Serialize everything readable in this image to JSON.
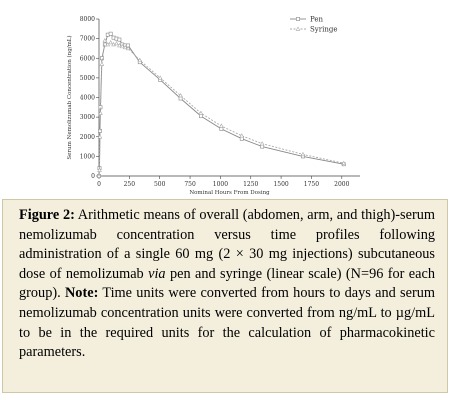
{
  "chart_data": {
    "type": "line",
    "xlabel": "Nominal Hours From Dosing",
    "ylabel": "Serum Nemolizumab Concentration (ng/mL)",
    "xlim": [
      0,
      2150
    ],
    "ylim": [
      0,
      8000
    ],
    "xticks": [
      0,
      250,
      500,
      750,
      1000,
      1250,
      1500,
      1750,
      2000
    ],
    "yticks": [
      0,
      1000,
      2000,
      3000,
      4000,
      5000,
      6000,
      7000,
      8000
    ],
    "xtick_labels": [
      "0",
      "250",
      "500",
      "750",
      "1000",
      "1250",
      "1500",
      "1750",
      "2000"
    ],
    "ytick_labels": [
      "0",
      "1000",
      "2000",
      "3000",
      "4000",
      "5000",
      "6000",
      "7000",
      "8000"
    ],
    "legend_position": "top-right",
    "series": [
      {
        "name": "Pen",
        "color": "#888888",
        "marker": "square",
        "x": [
          0,
          4,
          8,
          12,
          24,
          48,
          72,
          96,
          120,
          144,
          168,
          192,
          216,
          240,
          336,
          504,
          672,
          840,
          1008,
          1176,
          1344,
          1680,
          2016
        ],
        "y": [
          0,
          400,
          2300,
          3500,
          6000,
          6700,
          7200,
          7250,
          7050,
          7000,
          6950,
          6700,
          6650,
          6650,
          5800,
          4900,
          3950,
          3050,
          2400,
          1900,
          1500,
          1000,
          600
        ]
      },
      {
        "name": "Syringe",
        "color": "#aaaaaa",
        "marker": "triangle",
        "x": [
          0,
          4,
          8,
          12,
          24,
          48,
          72,
          96,
          120,
          144,
          168,
          192,
          216,
          240,
          336,
          504,
          672,
          840,
          1008,
          1176,
          1344,
          1680,
          2016
        ],
        "y": [
          0,
          300,
          2000,
          3200,
          5700,
          6900,
          6700,
          6800,
          6700,
          6750,
          6650,
          6600,
          6550,
          6500,
          5900,
          5000,
          4100,
          3200,
          2550,
          2050,
          1650,
          1100,
          650
        ]
      }
    ]
  },
  "caption": {
    "figure_label": "Figure 2:",
    "text_1": " Arithmetic means of overall (abdomen, arm, and thigh)-serum nemolizumab concentration versus time profiles following administration of a single 60 mg (2 × 30 mg injections) subcutaneous dose of nemolizumab ",
    "via": "via",
    "text_2": " pen and syringe (linear scale) (N=96 for each group). ",
    "note_label": "Note:",
    "text_3": " Time units were converted from hours to days and serum nemolizumab concentration units were converted from ng/mL to µg/mL to be in the required units for the calculation of pharmacokinetic parameters."
  }
}
